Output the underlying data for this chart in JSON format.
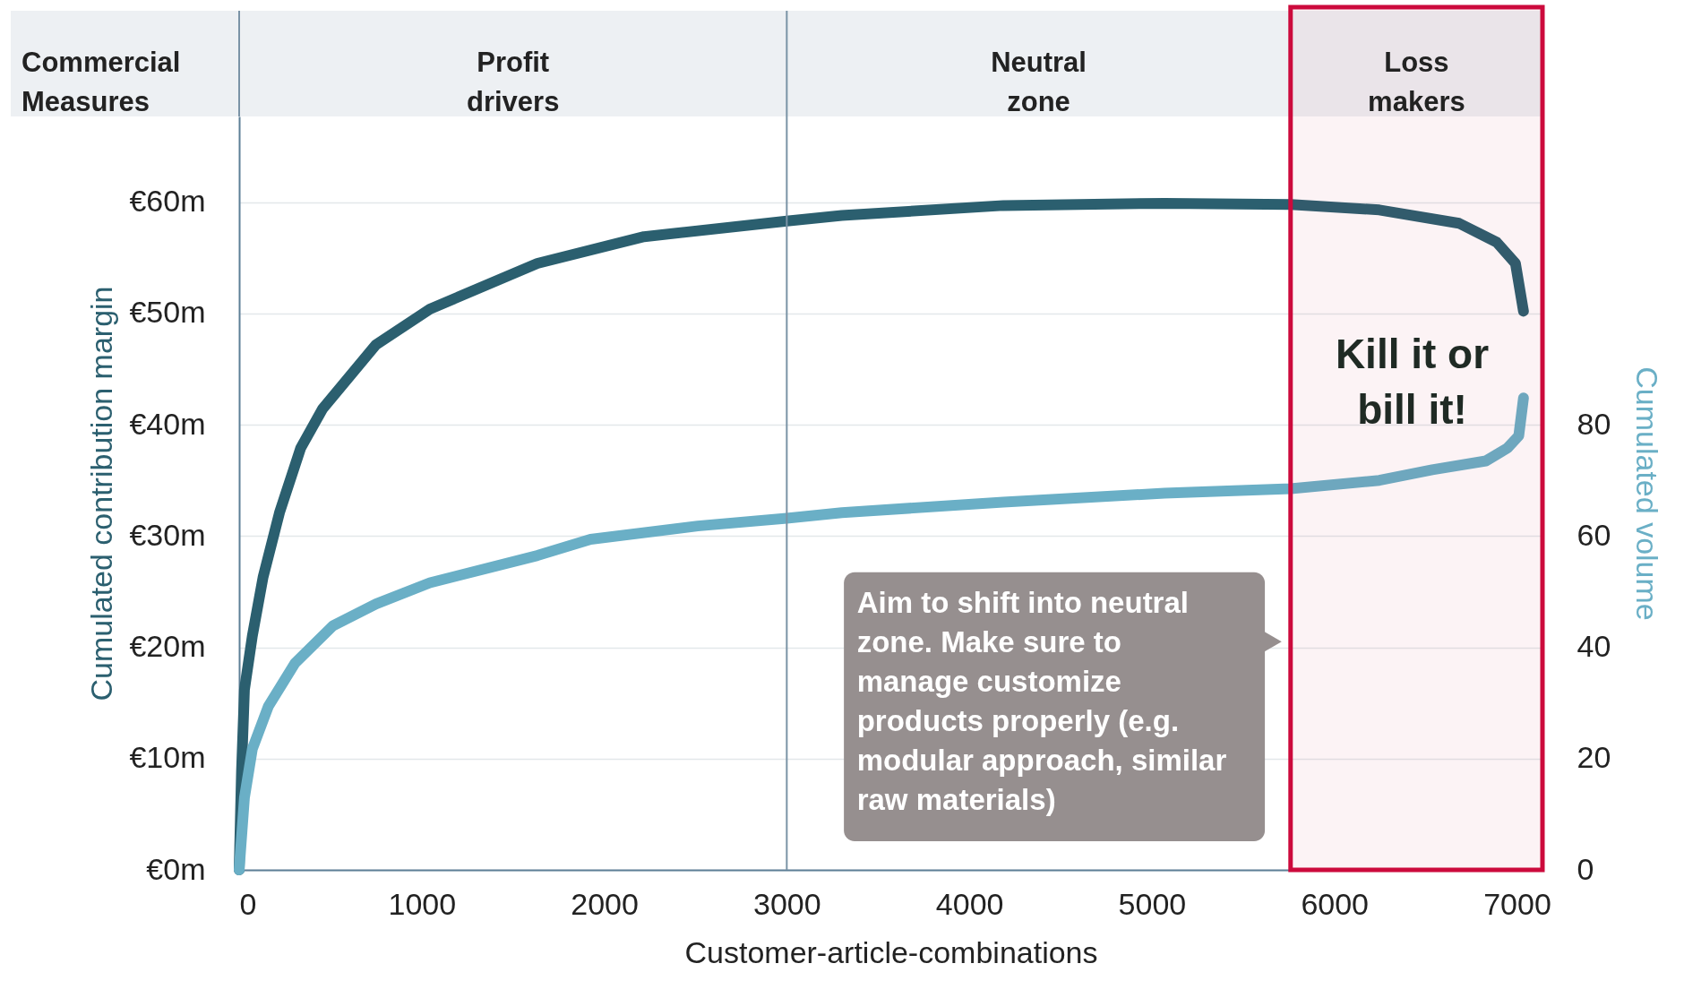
{
  "chart_data": {
    "type": "line",
    "xlabel": "Customer-article-combinations",
    "ylabel": "Cumulated contribution margin",
    "y2label": "Cumulated volume",
    "xlim": [
      0,
      7140
    ],
    "xticks": [
      0,
      1000,
      2000,
      3000,
      4000,
      5000,
      6000,
      7000
    ],
    "ref_lines": [
      {
        "axis": "x",
        "value": 3000,
        "color": "#7a93a6"
      }
    ],
    "ylim": [
      0,
      67.7
    ],
    "yticks": [
      {
        "value": 0,
        "label": "€0m"
      },
      {
        "value": 10,
        "label": "€10m"
      },
      {
        "value": 20,
        "label": "€20m"
      },
      {
        "value": 30,
        "label": "€30m"
      },
      {
        "value": 40,
        "label": "€40m"
      },
      {
        "value": 50,
        "label": "€50m"
      },
      {
        "value": 60,
        "label": "€60m"
      }
    ],
    "y2lim": [
      0,
      135.4
    ],
    "y2ticks": [
      0,
      20,
      40,
      60,
      80
    ],
    "grid": "y",
    "line_style": "solid",
    "series": [
      {
        "color": "#2b5f6f",
        "x": [
          0,
          13,
          29,
          72,
          131,
          221,
          337,
          456,
          750,
          1045,
          1634,
          2218,
          3000,
          3302,
          4186,
          5069,
          5761,
          6246,
          6683,
          6889,
          6992,
          7036
        ],
        "values": [
          0,
          8.9,
          16.2,
          21,
          26.3,
          32.1,
          37.9,
          41.4,
          47.2,
          50.4,
          54.5,
          56.9,
          58.3,
          58.8,
          59.7,
          59.9,
          59.8,
          59.3,
          58.1,
          56.4,
          54.5,
          50.2
        ]
      },
      {
        "color": "#6aafc6",
        "axis": "y2",
        "x": [
          0,
          29,
          72,
          160,
          307,
          515,
          750,
          1045,
          1634,
          1925,
          2512,
          3000,
          3302,
          4186,
          5069,
          5761,
          6246,
          6536,
          6830,
          6948,
          7010,
          7036
        ],
        "values": [
          0,
          13,
          21.7,
          29.4,
          37.2,
          43.9,
          47.8,
          51.6,
          56.5,
          59.4,
          61.8,
          63.2,
          64.2,
          66.1,
          67.7,
          68.5,
          70,
          71.9,
          73.5,
          75.8,
          78,
          84.8
        ]
      }
    ],
    "bands": [
      {
        "axis": "x",
        "from": 5760,
        "to": 7140,
        "label": "Loss makers",
        "color": "#cc0a3c"
      }
    ],
    "annotations": [
      "Commercial Measures",
      "Profit drivers",
      "Neutral zone",
      "Kill it or bill it!",
      "Aim to shift into neutral zone. Make sure to manage customize products properly (e.g. modular approach, similar raw materials)"
    ]
  }
}
